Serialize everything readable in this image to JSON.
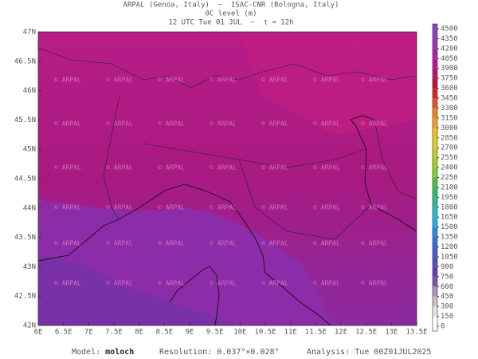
{
  "header": {
    "lines": [
      "ARPAL (Genoa, Italy)  –  ISAC-CNR (Bologna, Italy)",
      "0C level (m)",
      "12 UTC Tue 01 JUL  –  τ = 12h"
    ]
  },
  "map": {
    "lon_ticks": [
      "6E",
      "6.5E",
      "7E",
      "7.5E",
      "8E",
      "8.5E",
      "9E",
      "9.5E",
      "10E",
      "10.5E",
      "11E",
      "11.5E",
      "12E",
      "12.5E",
      "13E",
      "13.5E"
    ],
    "lat_ticks": [
      "47N",
      "46.5N",
      "46N",
      "45.5N",
      "45N",
      "44.5N",
      "44N",
      "43.5N",
      "43N",
      "42.5N",
      "42N"
    ],
    "watermark": "© ARPAL"
  },
  "colorbar": {
    "levels": [
      0,
      150,
      300,
      450,
      600,
      750,
      900,
      1050,
      1200,
      1350,
      1500,
      1650,
      1800,
      1950,
      2100,
      2250,
      2400,
      2550,
      2700,
      2850,
      3000,
      3150,
      3300,
      3450,
      3600,
      3750,
      3900,
      4050,
      4200,
      4350,
      4500
    ],
    "colors": [
      "#ffffff",
      "#e4e4e4",
      "#c4c4c4",
      "#b090c0",
      "#8050b0",
      "#6040b0",
      "#5050c8",
      "#4060d0",
      "#3070e0",
      "#2090e0",
      "#20b0e0",
      "#20c0c0",
      "#20c090",
      "#30c060",
      "#50c040",
      "#80d030",
      "#a0d020",
      "#c0d020",
      "#e0d020",
      "#f0c020",
      "#f0a020",
      "#f08020",
      "#f05020",
      "#e02020",
      "#c01040",
      "#c01070",
      "#c010a0",
      "#b020b0",
      "#a030c0",
      "#9040c0"
    ]
  },
  "footer": {
    "items": [
      {
        "label": "Model:",
        "value": "moloch"
      },
      {
        "label": "Resolution:",
        "value": "0.037°×0.028°"
      },
      {
        "label": "Analysis:",
        "value": "Tue 00Z01JUL2025"
      }
    ]
  }
}
